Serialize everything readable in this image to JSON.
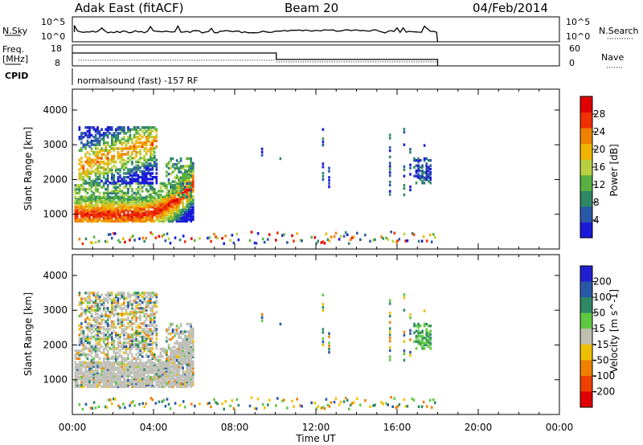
{
  "header": {
    "station": "Adak East (fitACF)",
    "beam": "Beam 20",
    "date": "04/Feb/2014"
  },
  "top_panels": {
    "nsky_label": "N.Sky",
    "nsky_ticks": [
      "10^5",
      "10^0"
    ],
    "nsearch_label": "N.Search",
    "freq_label_1": "Freq.",
    "freq_label_2": "[MHz]",
    "freq_ticks": [
      "18",
      "8"
    ],
    "nave_label": "Nave",
    "nave_ticks": [
      "60",
      "0"
    ],
    "cpid_label": "CPID",
    "cpid_text": "normalsound (fast) -157 RF"
  },
  "colors": {
    "power": [
      "#1a1ad8",
      "#2a58a8",
      "#2f8868",
      "#58b040",
      "#b8d040",
      "#f0b400",
      "#f08000",
      "#f03000",
      "#e00000"
    ],
    "velocity": [
      "#2020d0",
      "#2a58a8",
      "#2f8868",
      "#60c840",
      "#c0c0b0",
      "#f0c000",
      "#f08000",
      "#f04000",
      "#e00000"
    ],
    "ground": "#c0c0b8"
  },
  "chart_data": [
    {
      "type": "heatmap",
      "name": "power",
      "ylabel": "Slant Range [km]",
      "xlabel": "",
      "xlim": [
        0,
        24
      ],
      "ylim": [
        0,
        4600
      ],
      "yticks": [
        "1000",
        "2000",
        "3000",
        "4000"
      ],
      "colorbar": {
        "label": "Power [dB]",
        "ticks": [
          "4",
          "8",
          "12",
          "16",
          "20",
          "24",
          "28"
        ],
        "range": [
          0,
          32
        ]
      },
      "regions": [
        {
          "desc": "ionospheric band",
          "t": [
            0.1,
            5.7
          ],
          "r": [
            850,
            1400
          ],
          "level": 0.9
        },
        {
          "desc": "upper band",
          "t": [
            0.3,
            3.8
          ],
          "r": [
            1900,
            3400
          ],
          "level": 0.55
        },
        {
          "desc": "scatter patch",
          "t": [
            16.8,
            17.7
          ],
          "r": [
            1900,
            2600
          ],
          "level": 0.2
        }
      ]
    },
    {
      "type": "heatmap",
      "name": "velocity",
      "ylabel": "Slant Range [km]",
      "xlabel": "Time UT",
      "xlim": [
        0,
        24
      ],
      "ylim": [
        0,
        4600
      ],
      "yticks": [
        "1000",
        "2000",
        "3000",
        "4000"
      ],
      "xticks": [
        "00:00",
        "04:00",
        "08:00",
        "12:00",
        "16:00",
        "20:00",
        "00:00"
      ],
      "colorbar": {
        "label": "Velocity [m s^-1]",
        "ticks": [
          "200",
          "100",
          "50",
          "15",
          "-15",
          "-50",
          "-100",
          "-200"
        ],
        "range": [
          -250,
          250
        ]
      }
    }
  ]
}
